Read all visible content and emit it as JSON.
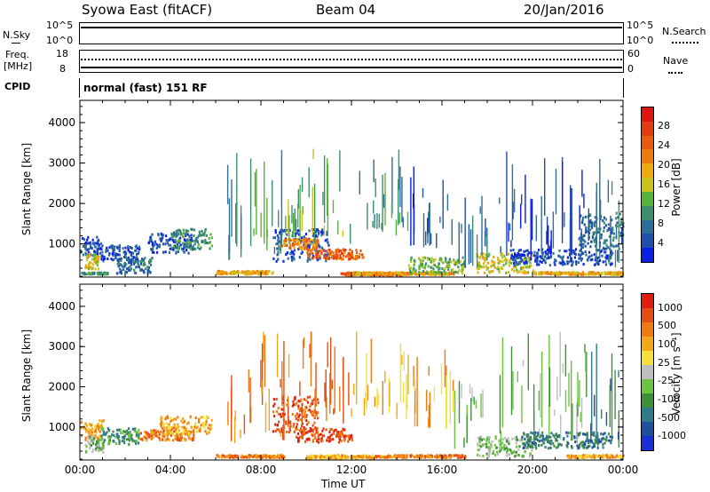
{
  "header": {
    "station": "Syowa East (fitACF)",
    "beam": "Beam 04",
    "date": "20/Jan/2016"
  },
  "noise_panel": {
    "left_label": "N.Sky",
    "left_ticks": [
      "10^5",
      "10^0"
    ],
    "right_ticks": [
      "10^5",
      "10^0"
    ],
    "right_label": "N.Search"
  },
  "freq_panel": {
    "left_label_1": "Freq.",
    "left_label_2": "[MHz]",
    "left_ticks": [
      "18",
      "8"
    ],
    "right_ticks": [
      "60",
      "0"
    ],
    "right_label": "Nave",
    "cpid_label": "CPID",
    "mode_text": "normal (fast) 151 RF"
  },
  "x_axis": {
    "label": "Time UT",
    "ticks": [
      "00:00",
      "04:00",
      "08:00",
      "12:00",
      "16:00",
      "20:00",
      "00:00"
    ]
  },
  "chart_data": [
    {
      "type": "heatmap",
      "panel": "power",
      "ylabel": "Slant Range [km]",
      "yticks": [
        "1000",
        "2000",
        "3000",
        "4000"
      ],
      "ylim": [
        180,
        4550
      ],
      "xlim_hours": [
        0,
        24
      ],
      "colorbar": {
        "label": "Power [dB]",
        "ticks": [
          "4",
          "8",
          "12",
          "16",
          "20",
          "24",
          "28"
        ],
        "colors": [
          "#0a1ee6",
          "#1f4fa8",
          "#2e6e9a",
          "#3c8f6c",
          "#57b23a",
          "#c9c31c",
          "#f0a812",
          "#ef7a0d",
          "#e85a10",
          "#e23b10",
          "#de1410"
        ]
      },
      "clusters": [
        {
          "t": [
            0.0,
            0.9
          ],
          "r": [
            700,
            1200
          ],
          "c": 1
        },
        {
          "t": [
            0.2,
            0.8
          ],
          "r": [
            400,
            800
          ],
          "c": 5
        },
        {
          "t": [
            0.9,
            2.6
          ],
          "r": [
            600,
            1000
          ],
          "c": 1
        },
        {
          "t": [
            1.6,
            3.2
          ],
          "r": [
            300,
            700
          ],
          "c": 2
        },
        {
          "t": [
            3.0,
            5.0
          ],
          "r": [
            800,
            1300
          ],
          "c": 1
        },
        {
          "t": [
            4.0,
            5.8
          ],
          "r": [
            900,
            1400
          ],
          "c": 3
        },
        {
          "t": [
            0.0,
            1.2
          ],
          "r": [
            280,
            320
          ],
          "c": 3
        },
        {
          "t": [
            6.0,
            8.5
          ],
          "r": [
            280,
            360
          ],
          "c": 6
        },
        {
          "t": [
            8.5,
            11.0
          ],
          "r": [
            600,
            1400
          ],
          "c": 1
        },
        {
          "t": [
            8.8,
            10.5
          ],
          "r": [
            900,
            1150
          ],
          "c": 7
        },
        {
          "t": [
            10.0,
            12.5
          ],
          "r": [
            650,
            900
          ],
          "c": 8
        },
        {
          "t": [
            11.5,
            14.5
          ],
          "r": [
            250,
            320
          ],
          "c": 8
        },
        {
          "t": [
            12.0,
            16.5
          ],
          "r": [
            270,
            330
          ],
          "c": 6
        },
        {
          "t": [
            14.5,
            17.0
          ],
          "r": [
            300,
            700
          ],
          "c": 4
        },
        {
          "t": [
            17.5,
            20.0
          ],
          "r": [
            300,
            800
          ],
          "c": 5
        },
        {
          "t": [
            19.0,
            23.5
          ],
          "r": [
            500,
            900
          ],
          "c": 1
        },
        {
          "t": [
            20.0,
            24.0
          ],
          "r": [
            270,
            330
          ],
          "c": 6
        },
        {
          "t": [
            22.0,
            24.0
          ],
          "r": [
            900,
            1800
          ],
          "c": 2
        }
      ],
      "streaks": [
        {
          "t": [
            6.5,
            9.0
          ],
          "r": [
            900,
            3400
          ],
          "c": 3
        },
        {
          "t": [
            9.0,
            12.0
          ],
          "r": [
            1300,
            3400
          ],
          "c": 4
        },
        {
          "t": [
            12.0,
            14.5
          ],
          "r": [
            1500,
            3400
          ],
          "c": 3
        },
        {
          "t": [
            14.5,
            16.5
          ],
          "r": [
            1200,
            3100
          ],
          "c": 1
        },
        {
          "t": [
            16.5,
            18.0
          ],
          "r": [
            700,
            2200
          ],
          "c": 2
        },
        {
          "t": [
            18.5,
            22.5
          ],
          "r": [
            900,
            3400
          ],
          "c": 1
        },
        {
          "t": [
            22.5,
            24.0
          ],
          "r": [
            700,
            3100
          ],
          "c": 2
        }
      ]
    },
    {
      "type": "heatmap",
      "panel": "velocity",
      "ylabel": "Slant Range [km]",
      "yticks": [
        "1000",
        "2000",
        "3000",
        "4000"
      ],
      "ylim": [
        180,
        4550
      ],
      "xlim_hours": [
        0,
        24
      ],
      "colorbar": {
        "label": "Velocity [m s⁻¹]",
        "ticks": [
          "1000",
          "500",
          "100",
          "25",
          "-25",
          "-100",
          "-500",
          "-1000"
        ],
        "colors": [
          "#1a2fd8",
          "#204f9e",
          "#2f7a8a",
          "#3f8f3a",
          "#6cc340",
          "#bdbdbd",
          "#f3e03c",
          "#f2a818",
          "#f07a12",
          "#e64d12",
          "#e01e10"
        ]
      },
      "clusters": [
        {
          "t": [
            0.0,
            1.0
          ],
          "r": [
            700,
            1200
          ],
          "c": 7
        },
        {
          "t": [
            0.2,
            1.0
          ],
          "r": [
            400,
            800
          ],
          "c": 4
        },
        {
          "t": [
            0.9,
            2.6
          ],
          "r": [
            600,
            1000
          ],
          "c": 3
        },
        {
          "t": [
            2.6,
            5.0
          ],
          "r": [
            700,
            950
          ],
          "c": 8
        },
        {
          "t": [
            3.5,
            5.8
          ],
          "r": [
            850,
            1300
          ],
          "c": 7
        },
        {
          "t": [
            6.0,
            9.0
          ],
          "r": [
            270,
            330
          ],
          "c": 8
        },
        {
          "t": [
            8.5,
            10.5
          ],
          "r": [
            900,
            1800
          ],
          "c": 9
        },
        {
          "t": [
            9.5,
            12.0
          ],
          "r": [
            650,
            1000
          ],
          "c": 9
        },
        {
          "t": [
            10.0,
            13.0
          ],
          "r": [
            250,
            330
          ],
          "c": 7
        },
        {
          "t": [
            13.0,
            17.0
          ],
          "r": [
            270,
            330
          ],
          "c": 8
        },
        {
          "t": [
            17.5,
            20.0
          ],
          "r": [
            300,
            800
          ],
          "c": 4
        },
        {
          "t": [
            19.5,
            23.5
          ],
          "r": [
            500,
            900
          ],
          "c": 2
        },
        {
          "t": [
            21.5,
            24.0
          ],
          "r": [
            270,
            330
          ],
          "c": 7
        }
      ],
      "streaks": [
        {
          "t": [
            6.5,
            9.0
          ],
          "r": [
            900,
            3400
          ],
          "c": 8
        },
        {
          "t": [
            9.0,
            12.0
          ],
          "r": [
            1300,
            3400
          ],
          "c": 8
        },
        {
          "t": [
            12.0,
            14.5
          ],
          "r": [
            1500,
            3400
          ],
          "c": 7
        },
        {
          "t": [
            14.5,
            16.5
          ],
          "r": [
            1200,
            3100
          ],
          "c": 7
        },
        {
          "t": [
            16.5,
            18.0
          ],
          "r": [
            700,
            2200
          ],
          "c": 4
        },
        {
          "t": [
            18.5,
            22.5
          ],
          "r": [
            900,
            3400
          ],
          "c": 4
        },
        {
          "t": [
            22.5,
            24.0
          ],
          "r": [
            700,
            3100
          ],
          "c": 2
        }
      ]
    }
  ]
}
